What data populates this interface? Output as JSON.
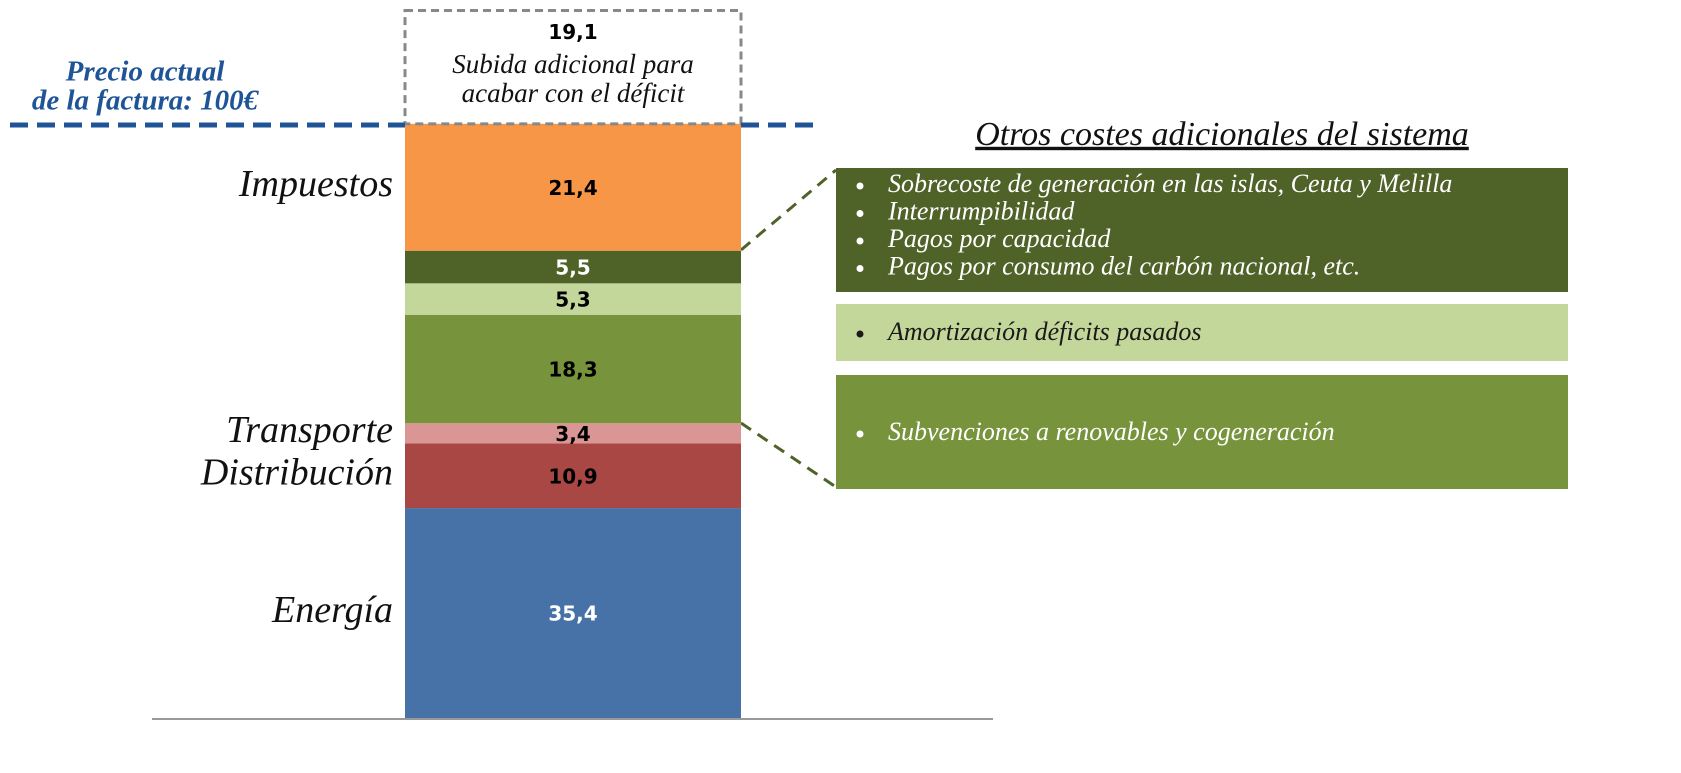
{
  "chart_data": {
    "type": "stacked-bar",
    "ylim": [
      0,
      120
    ],
    "segments": [
      {
        "label": "Energía",
        "value": 35.4,
        "value_label": "35,4",
        "color": "#4672a7",
        "text_color": "#ffffff"
      },
      {
        "label": "Distribución",
        "value": 10.9,
        "value_label": "10,9",
        "color": "#a94744",
        "text_color": "#000000"
      },
      {
        "label": "Transporte",
        "value": 3.4,
        "value_label": "3,4",
        "color": "#d99694",
        "text_color": "#000000"
      },
      {
        "label": null,
        "value": 18.3,
        "value_label": "18,3",
        "color": "#77933c",
        "text_color": "#000000"
      },
      {
        "label": null,
        "value": 5.3,
        "value_label": "5,3",
        "color": "#c4d79b",
        "text_color": "#000000"
      },
      {
        "label": null,
        "value": 5.5,
        "value_label": "5,5",
        "color": "#4f6228",
        "text_color": "#ffffff"
      },
      {
        "label": "Impuestos",
        "value": 21.4,
        "value_label": "21,4",
        "color": "#f79646",
        "text_color": "#000000"
      }
    ],
    "additional": {
      "value": 19.1,
      "value_label": "19,1",
      "lines": [
        "Subida adicional para",
        "acabar con el déficit"
      ]
    },
    "reference_line": {
      "value": 100,
      "lines": [
        "Precio actual",
        "de la factura: 100€"
      ],
      "color": "#1f5597"
    },
    "panel": {
      "title": "Otros costes adicionales del sistema",
      "boxes": [
        {
          "color": "#4f6228",
          "text_color": "#ffffff",
          "items": [
            "Sobrecoste de generación en las islas, Ceuta y Melilla",
            "Interrumpibilidad",
            "Pagos por capacidad",
            "Pagos por consumo del carbón nacional, etc."
          ]
        },
        {
          "color": "#c4d79b",
          "text_color": "#1a1a1a",
          "items": [
            "Amortización déficits pasados"
          ]
        },
        {
          "color": "#77933c",
          "text_color": "#ffffff",
          "items": [
            "Subvenciones a renovables y cogeneración"
          ]
        }
      ]
    }
  }
}
